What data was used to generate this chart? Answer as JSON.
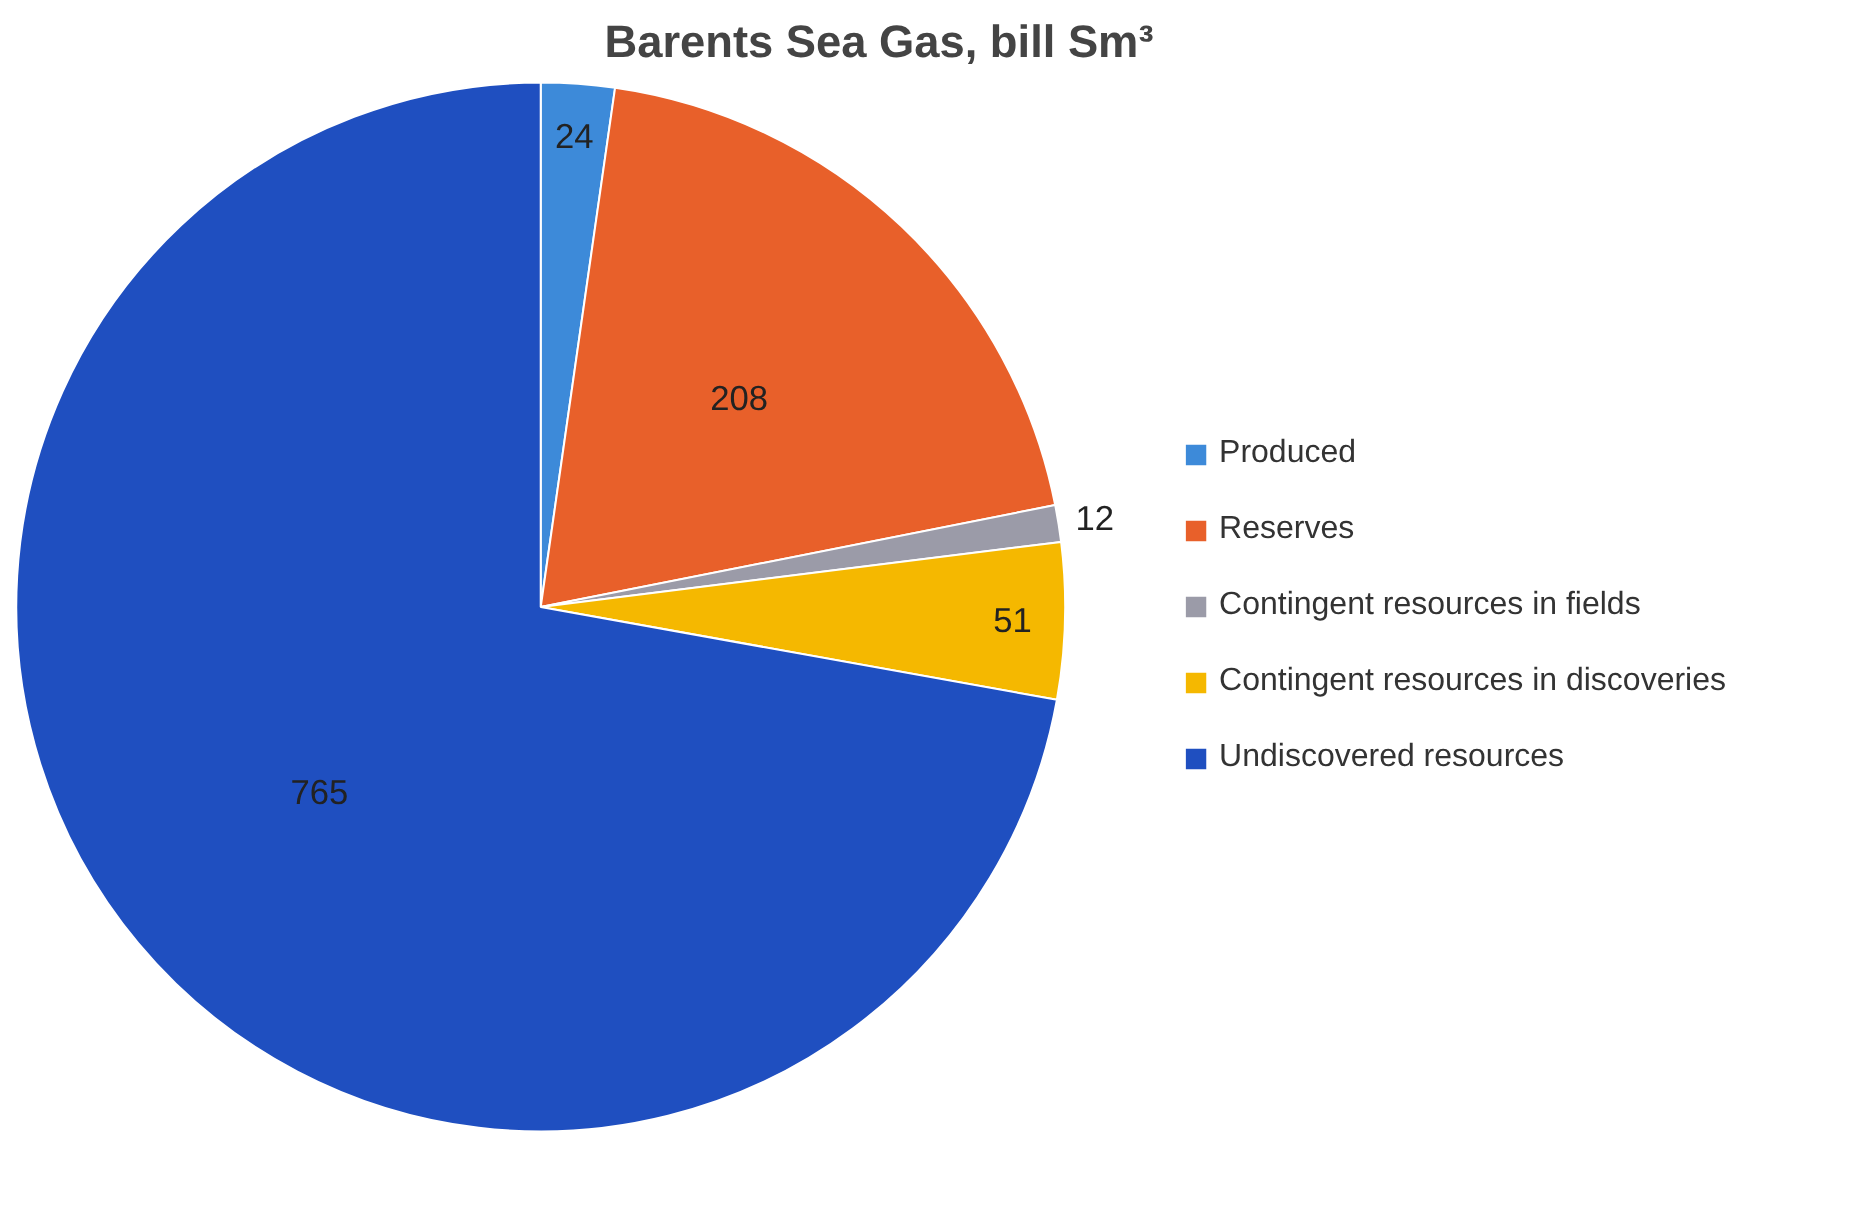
{
  "chart_data": {
    "type": "pie",
    "title": "Barents Sea Gas, bill Sm³",
    "categories": [
      "Produced",
      "Reserves",
      "Contingent resources in fields",
      "Contingent resources in discoveries",
      "Undiscovered resources"
    ],
    "values": [
      24,
      208,
      12,
      51,
      765
    ],
    "colors": [
      "#3d8ad9",
      "#e8602a",
      "#9b9ba8",
      "#f5b800",
      "#1f4fc0"
    ],
    "data_labels": true,
    "legend": "right"
  }
}
